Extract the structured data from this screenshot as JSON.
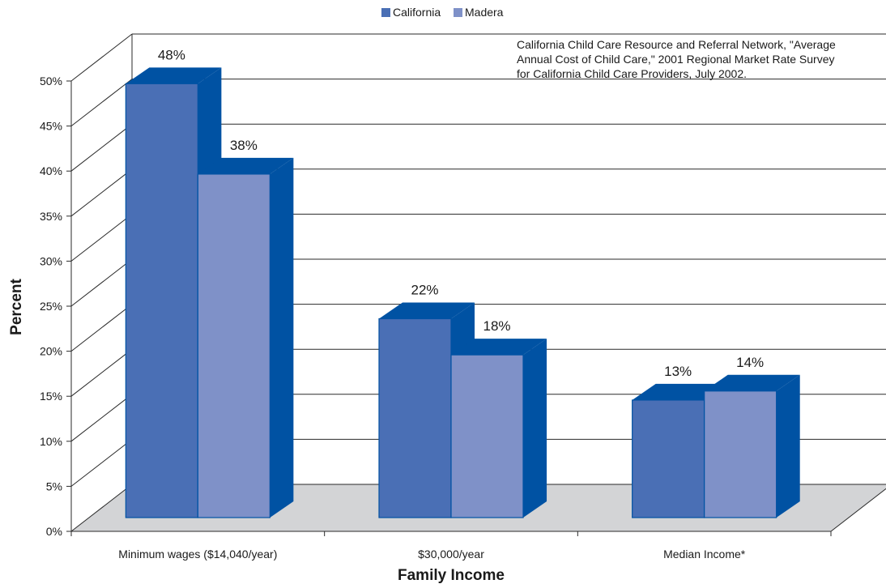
{
  "chart_data": {
    "type": "bar",
    "categories": [
      "Minimum wages ($14,040/year)",
      "$30,000/year",
      "Median Income*"
    ],
    "series": [
      {
        "name": "California",
        "values": [
          48,
          22,
          13
        ],
        "labels": [
          "48%",
          "22%",
          "13%"
        ],
        "color": "#4a6fb5",
        "shade": "#0052a3"
      },
      {
        "name": "Madera",
        "values": [
          38,
          18,
          14
        ],
        "labels": [
          "38%",
          "18%",
          "14%"
        ],
        "color": "#7f91c8",
        "shade": "#0052a3"
      }
    ],
    "xlabel": "Family Income",
    "ylabel": "Percent",
    "ylim": [
      0,
      50
    ],
    "yticks": [
      "0%",
      "5%",
      "10%",
      "15%",
      "20%",
      "25%",
      "30%",
      "35%",
      "40%",
      "45%",
      "50%"
    ],
    "grid": true,
    "legend_position": "top-center",
    "annotation": [
      "California Child Care Resource and Referral Network, \"Average",
      "Annual Cost of Child Care,\" 2001 Regional Market Rate Survey",
      "for California Child Care Providers, July 2002."
    ],
    "floor_color": "#d3d4d6"
  }
}
